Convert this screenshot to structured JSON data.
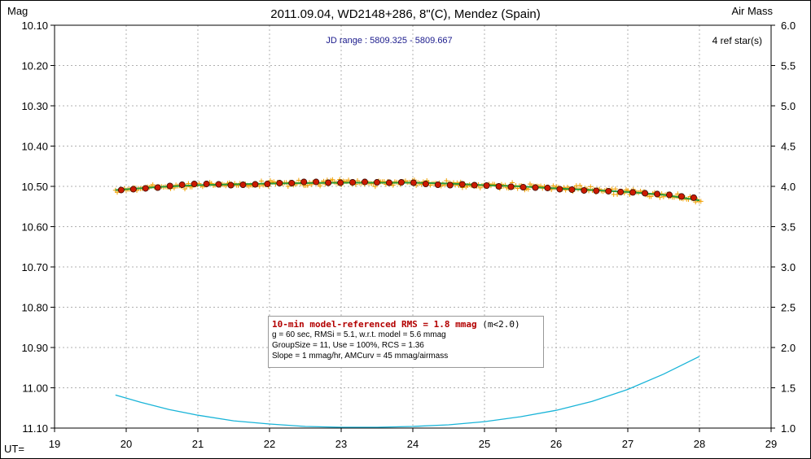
{
  "title": "2011.09.04, WD2148+286, 8\"(C), Mendez (Spain)",
  "ylabel_left": "Mag",
  "ylabel_right": "Air Mass",
  "xlabel": "UT=",
  "jd_range": "JD range : 5809.325 - 5809.667",
  "ref_stars": "4 ref star(s)",
  "stats": {
    "headline": "10-min model-referenced RMS = 1.8 mmag",
    "headline_note": " (m<2.0)",
    "line2": "g = 60 sec, RMSi = 5.1, w.r.t. model = 5.6 mmag",
    "line3": "GroupSize = 11, Use = 100%, RCS = 1.36",
    "line4": "Slope = 1 mmag/hr, AMCurv = 45 mmag/airmass"
  },
  "colors": {
    "raw_points": "#f0a000",
    "binned_points": "#cc1a00",
    "model_line": "#2a9a3a",
    "airmass_line": "#19b4d8",
    "grid": "#b0b0b0"
  },
  "chart_data": {
    "type": "scatter",
    "xlim": [
      19,
      29
    ],
    "ylim_mag": [
      10.1,
      11.1
    ],
    "ylim_airmass": [
      1.0,
      6.0
    ],
    "mag_axis_inverted": true,
    "x_ticks": [
      "19",
      "20",
      "21",
      "22",
      "23",
      "24",
      "25",
      "26",
      "27",
      "28",
      "29"
    ],
    "y_ticks_left": [
      "10.10",
      "10.20",
      "10.30",
      "10.40",
      "10.50",
      "10.60",
      "10.70",
      "10.80",
      "10.90",
      "11.00",
      "11.10"
    ],
    "y_ticks_right": [
      "6.0",
      "5.5",
      "5.0",
      "4.5",
      "4.0",
      "3.5",
      "3.0",
      "2.5",
      "2.0",
      "1.5",
      "1.0"
    ],
    "grid": true,
    "binned_mag": {
      "x": [
        19.93,
        20.1,
        20.27,
        20.44,
        20.61,
        20.78,
        20.95,
        21.12,
        21.29,
        21.46,
        21.63,
        21.8,
        21.97,
        22.14,
        22.31,
        22.48,
        22.65,
        22.82,
        22.99,
        23.16,
        23.33,
        23.5,
        23.67,
        23.84,
        24.01,
        24.18,
        24.35,
        24.52,
        24.69,
        24.86,
        25.03,
        25.2,
        25.37,
        25.54,
        25.71,
        25.88,
        26.05,
        26.22,
        26.39,
        26.56,
        26.73,
        26.9,
        27.07,
        27.24,
        27.41,
        27.58,
        27.75,
        27.92
      ],
      "y": [
        10.509,
        10.507,
        10.505,
        10.503,
        10.499,
        10.496,
        10.494,
        10.494,
        10.495,
        10.497,
        10.496,
        10.495,
        10.494,
        10.492,
        10.492,
        10.489,
        10.489,
        10.491,
        10.491,
        10.49,
        10.489,
        10.49,
        10.491,
        10.49,
        10.491,
        10.494,
        10.496,
        10.497,
        10.495,
        10.497,
        10.498,
        10.5,
        10.501,
        10.502,
        10.503,
        10.504,
        10.507,
        10.508,
        10.51,
        10.511,
        10.512,
        10.514,
        10.515,
        10.517,
        10.519,
        10.521,
        10.525,
        10.528
      ]
    },
    "model_mag": {
      "x": [
        19.85,
        20.5,
        21.0,
        21.5,
        22.0,
        22.5,
        23.0,
        23.5,
        24.0,
        24.5,
        25.0,
        25.5,
        26.0,
        26.5,
        27.0,
        27.5,
        28.0
      ],
      "y": [
        10.509,
        10.501,
        10.497,
        10.495,
        10.493,
        10.492,
        10.491,
        10.491,
        10.491,
        10.493,
        10.497,
        10.5,
        10.505,
        10.509,
        10.514,
        10.521,
        10.535
      ]
    },
    "airmass": {
      "x": [
        19.85,
        20.2,
        20.6,
        21.0,
        21.5,
        22.0,
        22.5,
        23.0,
        23.5,
        24.0,
        24.5,
        25.0,
        25.5,
        26.0,
        26.5,
        27.0,
        27.5,
        28.0
      ],
      "y": [
        1.41,
        1.32,
        1.23,
        1.16,
        1.09,
        1.05,
        1.02,
        1.01,
        1.01,
        1.02,
        1.04,
        1.08,
        1.14,
        1.22,
        1.33,
        1.48,
        1.67,
        1.89
      ]
    },
    "raw_mag": {
      "x_start": 19.85,
      "x_end": 28.02,
      "count": 330,
      "scatter_mmag": 5
    }
  }
}
